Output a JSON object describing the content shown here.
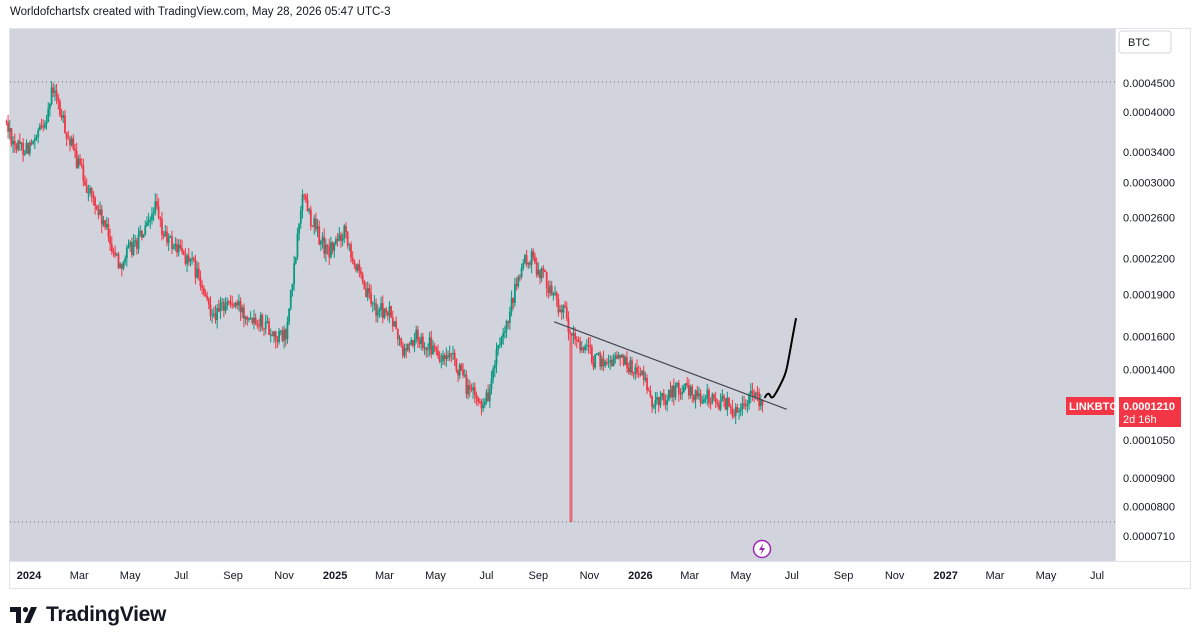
{
  "header": {
    "text": "Worldofchartsfx created with TradingView.com, May 28, 2026 05:47 UTC-3"
  },
  "quote_currency": "BTC",
  "price_badge": {
    "symbol": "LINKBTC",
    "price": "0.0001210",
    "countdown": "2d 16h",
    "color": "#f23645"
  },
  "colors": {
    "up": "#089981",
    "down": "#f23645",
    "plot_bg": "#d1d4dc",
    "trendline": "#434651",
    "drawing": "#000000"
  },
  "event_icon": "lightning-icon",
  "logo": {
    "word": "TradingView",
    "icon": "tradingview-logo-icon"
  },
  "chart_data": {
    "type": "candlestick",
    "symbol": "LINKBTC",
    "y_scale": "log",
    "ylim": [
      6.95e-05,
      5.1e-05
    ],
    "y_ticks": [
      {
        "value": 0.00045,
        "label": "0.0004500"
      },
      {
        "value": 0.0004,
        "label": "0.0004000"
      },
      {
        "value": 0.00034,
        "label": "0.0003400"
      },
      {
        "value": 0.0003,
        "label": "0.0003000"
      },
      {
        "value": 0.00026,
        "label": "0.0002600"
      },
      {
        "value": 0.00022,
        "label": "0.0002200"
      },
      {
        "value": 0.00019,
        "label": "0.0001900"
      },
      {
        "value": 0.00016,
        "label": "0.0001600"
      },
      {
        "value": 0.00014,
        "label": "0.0001400"
      },
      {
        "value": 0.000105,
        "label": "0.0001050"
      },
      {
        "value": 9e-05,
        "label": "0.0000900"
      },
      {
        "value": 8e-05,
        "label": "0.0000800"
      },
      {
        "value": 7.1e-05,
        "label": "0.0000710"
      }
    ],
    "x_ticks": [
      {
        "date": "2024-01-01",
        "label": "2024",
        "bold": true
      },
      {
        "date": "2024-03-01",
        "label": "Mar"
      },
      {
        "date": "2024-05-01",
        "label": "May"
      },
      {
        "date": "2024-07-01",
        "label": "Jul"
      },
      {
        "date": "2024-09-01",
        "label": "Sep"
      },
      {
        "date": "2024-11-01",
        "label": "Nov"
      },
      {
        "date": "2025-01-01",
        "label": "2025",
        "bold": true
      },
      {
        "date": "2025-03-01",
        "label": "Mar"
      },
      {
        "date": "2025-05-01",
        "label": "May"
      },
      {
        "date": "2025-07-01",
        "label": "Jul"
      },
      {
        "date": "2025-09-01",
        "label": "Sep"
      },
      {
        "date": "2025-11-01",
        "label": "Nov"
      },
      {
        "date": "2026-01-01",
        "label": "2026",
        "bold": true
      },
      {
        "date": "2026-03-01",
        "label": "Mar"
      },
      {
        "date": "2026-05-01",
        "label": "May"
      },
      {
        "date": "2026-07-01",
        "label": "Jul"
      },
      {
        "date": "2026-09-01",
        "label": "Sep"
      },
      {
        "date": "2026-11-01",
        "label": "Nov"
      },
      {
        "date": "2027-01-01",
        "label": "2027",
        "bold": true
      },
      {
        "date": "2027-03-01",
        "label": "Mar"
      },
      {
        "date": "2027-05-01",
        "label": "May"
      },
      {
        "date": "2027-07-01",
        "label": "Jul"
      }
    ],
    "price_path": [
      [
        "2023-12-05",
        0.000385
      ],
      [
        "2023-12-20",
        0.000345
      ],
      [
        "2024-01-10",
        0.00035
      ],
      [
        "2024-01-25",
        0.0004
      ],
      [
        "2024-02-01",
        0.00044
      ],
      [
        "2024-02-10",
        0.000395
      ],
      [
        "2024-02-25",
        0.00034
      ],
      [
        "2024-03-15",
        0.00029
      ],
      [
        "2024-04-05",
        0.000245
      ],
      [
        "2024-04-20",
        0.000215
      ],
      [
        "2024-05-05",
        0.00023
      ],
      [
        "2024-05-25",
        0.00025
      ],
      [
        "2024-06-01",
        0.000275
      ],
      [
        "2024-06-10",
        0.000245
      ],
      [
        "2024-06-20",
        0.000235
      ],
      [
        "2024-07-05",
        0.000225
      ],
      [
        "2024-07-20",
        0.00021
      ],
      [
        "2024-08-01",
        0.000185
      ],
      [
        "2024-08-15",
        0.000175
      ],
      [
        "2024-08-25",
        0.000185
      ],
      [
        "2024-09-10",
        0.00018
      ],
      [
        "2024-09-25",
        0.000175
      ],
      [
        "2024-10-10",
        0.00017
      ],
      [
        "2024-10-25",
        0.00016
      ],
      [
        "2024-11-05",
        0.00016
      ],
      [
        "2024-11-15",
        0.00021
      ],
      [
        "2024-11-25",
        0.00029
      ],
      [
        "2024-12-05",
        0.00026
      ],
      [
        "2024-12-15",
        0.00024
      ],
      [
        "2024-12-25",
        0.000225
      ],
      [
        "2025-01-05",
        0.000235
      ],
      [
        "2025-01-15",
        0.00025
      ],
      [
        "2025-01-25",
        0.00022
      ],
      [
        "2025-02-05",
        0.000195
      ],
      [
        "2025-02-20",
        0.00018
      ],
      [
        "2025-03-10",
        0.000175
      ],
      [
        "2025-03-25",
        0.00015
      ],
      [
        "2025-04-10",
        0.00016
      ],
      [
        "2025-04-25",
        0.000155
      ],
      [
        "2025-05-10",
        0.000145
      ],
      [
        "2025-05-25",
        0.000145
      ],
      [
        "2025-06-10",
        0.00013
      ],
      [
        "2025-06-25",
        0.000122
      ],
      [
        "2025-07-05",
        0.000126
      ],
      [
        "2025-07-15",
        0.000148
      ],
      [
        "2025-07-25",
        0.00016
      ],
      [
        "2025-08-05",
        0.00019
      ],
      [
        "2025-08-15",
        0.000215
      ],
      [
        "2025-08-25",
        0.00022
      ],
      [
        "2025-09-10",
        0.000205
      ],
      [
        "2025-09-25",
        0.000185
      ],
      [
        "2025-10-05",
        0.000175
      ],
      [
        "2025-10-10",
        0.00016
      ],
      [
        "2025-10-25",
        0.000155
      ],
      [
        "2025-11-10",
        0.000145
      ],
      [
        "2025-11-25",
        0.000145
      ],
      [
        "2025-12-10",
        0.000148
      ],
      [
        "2025-12-25",
        0.00014
      ],
      [
        "2026-01-05",
        0.000138
      ],
      [
        "2026-01-15",
        0.000122
      ],
      [
        "2026-02-01",
        0.000125
      ],
      [
        "2026-02-15",
        0.00013
      ],
      [
        "2026-03-01",
        0.000128
      ],
      [
        "2026-03-20",
        0.000125
      ],
      [
        "2026-04-10",
        0.000123
      ],
      [
        "2026-04-25",
        0.000119
      ],
      [
        "2026-05-05",
        0.000122
      ],
      [
        "2026-05-15",
        0.000128
      ],
      [
        "2026-05-28",
        0.000121
      ]
    ],
    "wick_event": {
      "date": "2025-10-10",
      "low": 7.52e-05
    },
    "dotted_levels": [
      0.000452,
      7.52e-05
    ],
    "trendline": {
      "from": [
        "2025-09-20",
        0.00017
      ],
      "to": [
        "2026-06-25",
        0.000119
      ]
    },
    "projection_path": [
      [
        "2026-05-30",
        0.000125
      ],
      [
        "2026-06-03",
        0.000128
      ],
      [
        "2026-06-07",
        0.000124
      ],
      [
        "2026-06-12",
        0.000127
      ],
      [
        "2026-06-18",
        0.000132
      ],
      [
        "2026-06-24",
        0.000138
      ],
      [
        "2026-06-28",
        0.000148
      ],
      [
        "2026-07-02",
        0.00016
      ],
      [
        "2026-07-06",
        0.000172
      ]
    ],
    "last_price": 0.000121
  }
}
